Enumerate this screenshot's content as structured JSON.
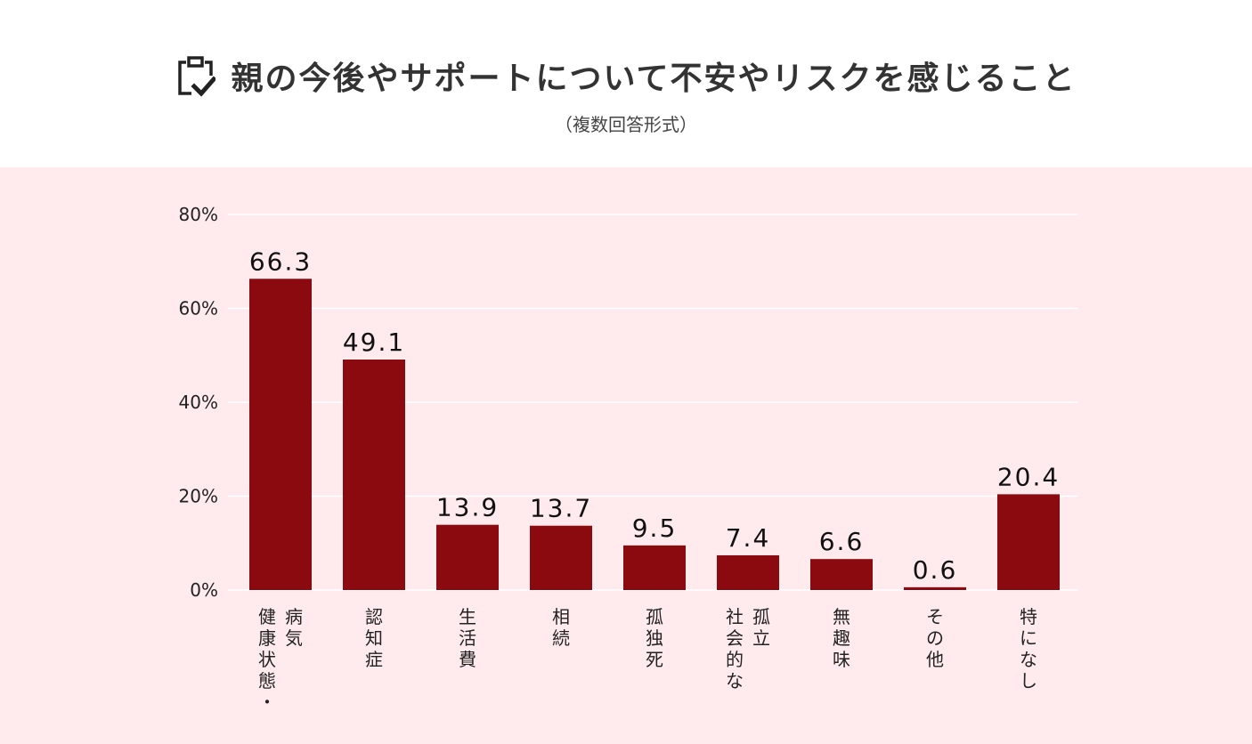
{
  "title": "親の今後やサポートについて不安やリスクを感じること",
  "subtitle": "（複数回答形式）",
  "chart_data": {
    "type": "bar",
    "title": "親の今後やサポートについて不安やリスクを感じること",
    "subtitle": "（複数回答形式）",
    "categories": [
      "病気・健康状態",
      "認知症",
      "生活費",
      "相続",
      "孤独死",
      "社会的な孤立",
      "無趣味",
      "その他",
      "特になし"
    ],
    "category_label_columns": [
      [
        "病気",
        "健康状態・"
      ],
      [
        "認知症"
      ],
      [
        "生活費"
      ],
      [
        "相続"
      ],
      [
        "孤独死"
      ],
      [
        "孤立",
        "社会的な"
      ],
      [
        "無趣味"
      ],
      [
        "その他"
      ],
      [
        "特になし"
      ]
    ],
    "values": [
      66.3,
      49.1,
      13.9,
      13.7,
      9.5,
      7.4,
      6.6,
      0.6,
      20.4
    ],
    "value_labels": [
      "66.3",
      "49.1",
      "13.9",
      "13.7",
      "9.5",
      "7.4",
      "6.6",
      "0.6",
      "20.4"
    ],
    "yticks": [
      0,
      20,
      40,
      60,
      80
    ],
    "ytick_labels": [
      "0%",
      "20%",
      "40%",
      "60%",
      "80%"
    ],
    "ylim": [
      0,
      80
    ],
    "xlabel": "",
    "ylabel": "",
    "grid": true,
    "bar_color": "#8b0a10",
    "background_color": "#ffebee"
  }
}
